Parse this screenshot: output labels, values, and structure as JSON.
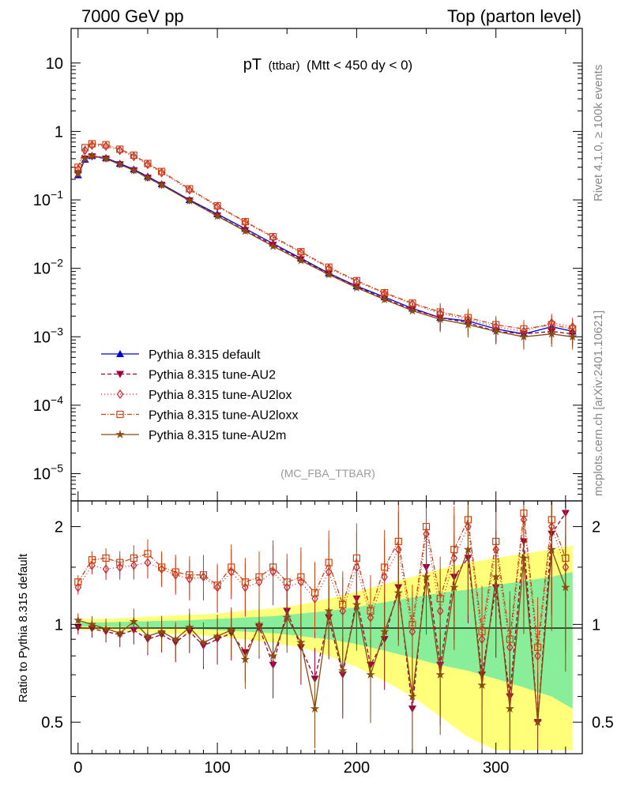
{
  "header": {
    "left": "7000 GeV pp",
    "right": "Top (parton level)"
  },
  "side_labels": {
    "rivet": "Rivet 4.1.0, ≥ 100k events",
    "mcplots": "mcplots.cern.ch [arXiv:2401.10621]"
  },
  "chart_data": [
    {
      "type": "line",
      "panel": "main",
      "title_main": "pT",
      "title_sub": "(ttbar)",
      "title_cut": "(Mtt < 450 dy < 0)",
      "analysis_id": "(MC_FBA_TTBAR)",
      "yscale": "log",
      "xlim": [
        -5,
        362
      ],
      "ylim": [
        4e-06,
        32
      ],
      "xlabel": "",
      "ylabel": "",
      "y_ticks": [
        {
          "value": 10,
          "label": "10"
        },
        {
          "value": 1,
          "label": "1"
        },
        {
          "value": 0.1,
          "label": "10^-1"
        },
        {
          "value": 0.01,
          "label": "10^-2"
        },
        {
          "value": 0.001,
          "label": "10^-3"
        },
        {
          "value": 0.0001,
          "label": "10^-4"
        },
        {
          "value": 1e-05,
          "label": "10^-5"
        }
      ],
      "legend_position": "lower-left",
      "series": [
        {
          "name": "Pythia 8.315 default",
          "color": "#0000dd",
          "marker": "triangle-up",
          "dash": "solid",
          "x": [
            0,
            5,
            10,
            20,
            30,
            40,
            50,
            60,
            80,
            100,
            120,
            140,
            160,
            180,
            200,
            220,
            240,
            260,
            280,
            300,
            320,
            340,
            355
          ],
          "y": [
            0.23,
            0.39,
            0.44,
            0.41,
            0.34,
            0.28,
            0.22,
            0.17,
            0.1,
            0.062,
            0.038,
            0.023,
            0.014,
            0.0085,
            0.0055,
            0.0038,
            0.0026,
            0.0019,
            0.0017,
            0.0013,
            0.0011,
            0.0014,
            0.0012
          ]
        },
        {
          "name": "Pythia 8.315 tune-AU2",
          "color": "#99003d",
          "marker": "triangle-down",
          "dash": "5,3",
          "x": [
            0,
            5,
            10,
            20,
            30,
            40,
            50,
            60,
            80,
            100,
            120,
            140,
            160,
            180,
            200,
            220,
            240,
            260,
            280,
            300,
            320,
            340,
            355
          ],
          "y": [
            0.24,
            0.4,
            0.43,
            0.4,
            0.33,
            0.27,
            0.21,
            0.165,
            0.098,
            0.059,
            0.036,
            0.022,
            0.0135,
            0.0083,
            0.0054,
            0.0036,
            0.0025,
            0.0019,
            0.0016,
            0.0012,
            0.0011,
            0.0012,
            0.0011
          ]
        },
        {
          "name": "Pythia 8.315 tune-AU2lox",
          "color": "#cc1f33",
          "marker": "diamond-open",
          "dash": "1,3",
          "x": [
            0,
            5,
            10,
            20,
            30,
            40,
            50,
            60,
            80,
            100,
            120,
            140,
            160,
            180,
            200,
            220,
            240,
            260,
            280,
            300,
            320,
            340,
            355
          ],
          "y": [
            0.28,
            0.53,
            0.63,
            0.61,
            0.53,
            0.43,
            0.33,
            0.25,
            0.14,
            0.08,
            0.047,
            0.028,
            0.017,
            0.01,
            0.0064,
            0.0043,
            0.003,
            0.0022,
            0.0018,
            0.0014,
            0.0012,
            0.0016,
            0.0014
          ]
        },
        {
          "name": "Pythia 8.315 tune-AU2loxx",
          "color": "#cc4410",
          "marker": "square-open",
          "dash": "6,2,1,2",
          "x": [
            0,
            5,
            10,
            20,
            30,
            40,
            50,
            60,
            80,
            100,
            120,
            140,
            160,
            180,
            200,
            220,
            240,
            260,
            280,
            300,
            320,
            340,
            355
          ],
          "y": [
            0.3,
            0.58,
            0.66,
            0.64,
            0.55,
            0.45,
            0.34,
            0.26,
            0.145,
            0.082,
            0.048,
            0.029,
            0.0175,
            0.0104,
            0.0066,
            0.0044,
            0.0031,
            0.0023,
            0.0019,
            0.0015,
            0.0013,
            0.0015,
            0.0013
          ]
        },
        {
          "name": "Pythia 8.315 tune-AU2m",
          "color": "#8a4b0f",
          "marker": "star",
          "dash": "solid",
          "x": [
            0,
            5,
            10,
            20,
            30,
            40,
            50,
            60,
            80,
            100,
            120,
            140,
            160,
            180,
            200,
            220,
            240,
            260,
            280,
            300,
            320,
            340,
            355
          ],
          "y": [
            0.24,
            0.4,
            0.44,
            0.4,
            0.33,
            0.27,
            0.21,
            0.165,
            0.097,
            0.058,
            0.035,
            0.021,
            0.013,
            0.0081,
            0.0052,
            0.0035,
            0.0024,
            0.0018,
            0.0015,
            0.0012,
            0.001,
            0.0011,
            0.001
          ]
        }
      ]
    },
    {
      "type": "line",
      "panel": "ratio",
      "ylabel": "Ratio to Pythia 8.315 default",
      "yscale": "log",
      "xlim": [
        -5,
        362
      ],
      "ylim": [
        0.4,
        2.4
      ],
      "x_ticks": [
        0,
        100,
        200,
        300
      ],
      "y_ticks": [
        0.5,
        1,
        2
      ],
      "reference_line": 1,
      "bands": [
        {
          "name": "stat-uncertainty-yellow",
          "color": "#ffff7a",
          "x": [
            0,
            20,
            40,
            60,
            80,
            100,
            120,
            140,
            160,
            180,
            200,
            220,
            240,
            260,
            280,
            300,
            320,
            340,
            355
          ],
          "half_width": [
            0.04,
            0.04,
            0.05,
            0.06,
            0.07,
            0.08,
            0.1,
            0.12,
            0.15,
            0.2,
            0.26,
            0.33,
            0.4,
            0.48,
            0.55,
            0.6,
            0.65,
            0.7,
            0.75
          ]
        },
        {
          "name": "stat-uncertainty-green",
          "color": "#88ee99",
          "x": [
            0,
            20,
            40,
            60,
            80,
            100,
            120,
            140,
            160,
            180,
            200,
            220,
            240,
            260,
            280,
            300,
            320,
            340,
            355
          ],
          "half_width": [
            0.015,
            0.015,
            0.02,
            0.025,
            0.03,
            0.04,
            0.05,
            0.06,
            0.08,
            0.1,
            0.13,
            0.17,
            0.21,
            0.25,
            0.28,
            0.32,
            0.36,
            0.4,
            0.45
          ]
        }
      ],
      "series": [
        {
          "name": "Pythia 8.315 tune-AU2",
          "color": "#99003d",
          "marker": "triangle-down",
          "dash": "5,3",
          "x": [
            0,
            10,
            20,
            30,
            40,
            50,
            60,
            70,
            80,
            90,
            100,
            110,
            120,
            130,
            140,
            150,
            160,
            170,
            180,
            190,
            200,
            210,
            220,
            230,
            240,
            250,
            260,
            270,
            280,
            290,
            300,
            310,
            320,
            330,
            340,
            350
          ],
          "y": [
            0.98,
            0.97,
            0.95,
            0.93,
            0.96,
            0.9,
            0.93,
            0.88,
            0.95,
            0.86,
            0.9,
            0.94,
            0.82,
            0.98,
            0.75,
            1.1,
            0.85,
            0.68,
            1.05,
            0.7,
            1.2,
            0.75,
            0.9,
            1.3,
            0.55,
            1.5,
            0.75,
            1.4,
            1.6,
            0.7,
            1.3,
            0.6,
            1.8,
            0.5,
            1.9,
            2.2
          ]
        },
        {
          "name": "Pythia 8.315 tune-AU2lox",
          "color": "#cc1f33",
          "marker": "diamond-open",
          "dash": "1,3",
          "x": [
            0,
            10,
            20,
            30,
            40,
            50,
            60,
            70,
            80,
            90,
            100,
            110,
            120,
            130,
            140,
            150,
            160,
            170,
            180,
            190,
            200,
            210,
            220,
            230,
            240,
            250,
            260,
            270,
            280,
            290,
            300,
            310,
            320,
            330,
            340,
            350
          ],
          "y": [
            1.3,
            1.52,
            1.48,
            1.5,
            1.52,
            1.55,
            1.48,
            1.42,
            1.38,
            1.4,
            1.3,
            1.45,
            1.3,
            1.35,
            1.45,
            1.3,
            1.35,
            1.2,
            1.45,
            1.1,
            1.5,
            1.05,
            1.4,
            1.7,
            0.95,
            1.9,
            1.1,
            1.6,
            2.0,
            0.9,
            1.7,
            0.85,
            2.1,
            0.8,
            2.0,
            1.5
          ]
        },
        {
          "name": "Pythia 8.315 tune-AU2loxx",
          "color": "#cc4410",
          "marker": "square-open",
          "dash": "6,2,1,2",
          "x": [
            0,
            10,
            20,
            30,
            40,
            50,
            60,
            70,
            80,
            90,
            100,
            110,
            120,
            130,
            140,
            150,
            160,
            170,
            180,
            190,
            200,
            210,
            220,
            230,
            240,
            250,
            260,
            270,
            280,
            290,
            300,
            310,
            320,
            330,
            340,
            350
          ],
          "y": [
            1.35,
            1.58,
            1.6,
            1.55,
            1.6,
            1.65,
            1.5,
            1.45,
            1.42,
            1.42,
            1.32,
            1.5,
            1.35,
            1.4,
            1.5,
            1.35,
            1.4,
            1.25,
            1.55,
            1.15,
            1.6,
            1.1,
            1.5,
            1.8,
            1.0,
            2.0,
            1.2,
            1.7,
            2.1,
            0.95,
            1.8,
            0.9,
            2.2,
            0.85,
            2.1,
            1.6
          ]
        },
        {
          "name": "Pythia 8.315 tune-AU2m",
          "color": "#8a4b0f",
          "marker": "star",
          "dash": "solid",
          "x": [
            0,
            10,
            20,
            30,
            40,
            50,
            60,
            70,
            80,
            90,
            100,
            110,
            120,
            130,
            140,
            150,
            160,
            170,
            180,
            190,
            200,
            210,
            220,
            230,
            240,
            250,
            260,
            270,
            280,
            290,
            300,
            310,
            320,
            330,
            340,
            350
          ],
          "y": [
            1.03,
            1.0,
            0.97,
            0.94,
            1.02,
            0.92,
            0.95,
            0.9,
            0.98,
            0.88,
            0.92,
            0.96,
            0.78,
            1.0,
            0.8,
            1.05,
            0.88,
            0.55,
            1.1,
            0.72,
            1.15,
            0.7,
            0.95,
            1.25,
            0.6,
            1.4,
            0.7,
            1.3,
            1.7,
            0.65,
            1.4,
            0.55,
            1.6,
            0.5,
            1.7,
            1.3
          ]
        }
      ]
    }
  ]
}
